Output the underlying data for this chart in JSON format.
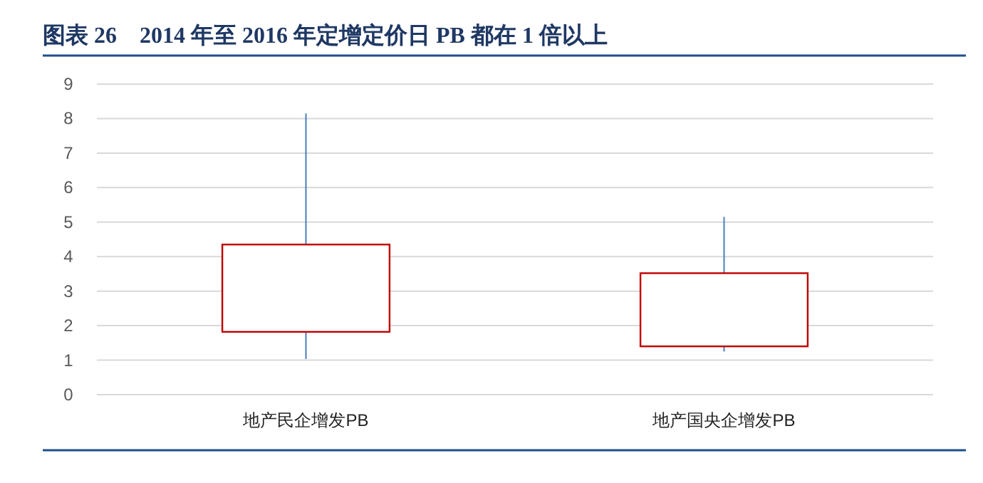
{
  "chart_data": {
    "type": "candlestick",
    "title": "图表 26　2014 年至 2016 年定增定价日 PB 都在 1 倍以上",
    "categories": [
      "地产民企增发PB",
      "地产国央企增发PB"
    ],
    "ohlc": [
      [
        1.82,
        8.15,
        1.03,
        4.35
      ],
      [
        1.4,
        5.15,
        1.25,
        3.52
      ]
    ],
    "color": "#c00000",
    "ylim": [
      0,
      9
    ],
    "yticks": [
      0,
      1,
      2,
      3,
      4,
      5,
      6,
      7,
      8,
      9
    ],
    "grid": "y"
  }
}
